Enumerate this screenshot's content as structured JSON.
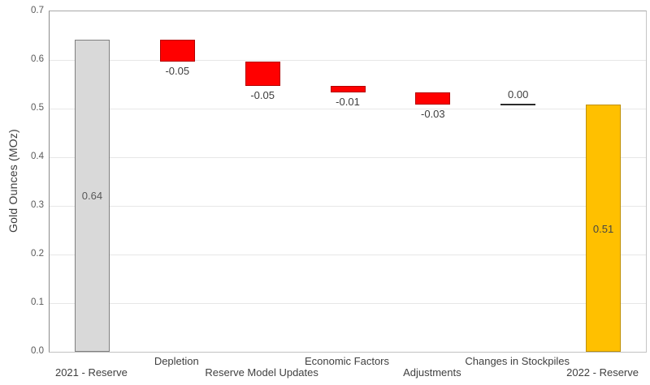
{
  "chart_data": {
    "type": "bar",
    "subtype": "waterfall",
    "title": "",
    "xlabel": "",
    "ylabel": "Gold Ounces (MOz)",
    "ylim": [
      0.0,
      0.7
    ],
    "ytick_step": 0.1,
    "ytick_labels": [
      "0.0",
      "0.1",
      "0.2",
      "0.3",
      "0.4",
      "0.5",
      "0.6",
      "0.7"
    ],
    "grid": "horizontal",
    "legend_position": "none",
    "categories": [
      "2021 - Reserve",
      "Depletion",
      "Reserve Model Updates",
      "Economic Factors",
      "Adjustments",
      "Changes in Stockpiles",
      "2022 - Reserve"
    ],
    "bars": [
      {
        "category": "2021 - Reserve",
        "kind": "start-total",
        "value": 0.64,
        "from": 0.0,
        "to": 0.642,
        "label": "0.64",
        "label_placement": "inside-center",
        "fill": "#D9D9D9",
        "border": "#7F7F7F",
        "label_color": "#595959",
        "axis_label_row": 2
      },
      {
        "category": "Depletion",
        "kind": "decrease",
        "value": -0.05,
        "from": 0.642,
        "to": 0.596,
        "label": "-0.05",
        "label_placement": "below",
        "fill": "#FF0000",
        "border": "#B30000",
        "label_color": "#3d3d3d",
        "axis_label_row": 1
      },
      {
        "category": "Reserve Model Updates",
        "kind": "decrease",
        "value": -0.05,
        "from": 0.596,
        "to": 0.546,
        "label": "-0.05",
        "label_placement": "below",
        "fill": "#FF0000",
        "border": "#B30000",
        "label_color": "#3d3d3d",
        "axis_label_row": 2
      },
      {
        "category": "Economic Factors",
        "kind": "decrease",
        "value": -0.01,
        "from": 0.546,
        "to": 0.534,
        "label": "-0.01",
        "label_placement": "below",
        "fill": "#FF0000",
        "border": "#B30000",
        "label_color": "#3d3d3d",
        "axis_label_row": 1
      },
      {
        "category": "Adjustments",
        "kind": "decrease",
        "value": -0.03,
        "from": 0.534,
        "to": 0.508,
        "label": "-0.03",
        "label_placement": "below",
        "fill": "#FF0000",
        "border": "#B30000",
        "label_color": "#3d3d3d",
        "axis_label_row": 2
      },
      {
        "category": "Changes in Stockpiles",
        "kind": "no-change",
        "value": 0.0,
        "from": 0.508,
        "to": 0.508,
        "label": "0.00",
        "label_placement": "above",
        "fill": "none",
        "border": "#2b2b2b",
        "label_color": "#3d3d3d",
        "axis_label_row": 1
      },
      {
        "category": "2022 - Reserve",
        "kind": "end-total",
        "value": 0.51,
        "from": 0.0,
        "to": 0.508,
        "label": "0.51",
        "label_placement": "inside-center",
        "fill": "#FFC000",
        "border": "#BF9000",
        "label_color": "#454545",
        "axis_label_row": 2
      }
    ],
    "colors": {
      "start_total": "#D9D9D9",
      "decrease": "#FF0000",
      "end_total": "#FFC000",
      "gridline": "#E7E7E7",
      "axis": "#8C8C8C"
    }
  }
}
